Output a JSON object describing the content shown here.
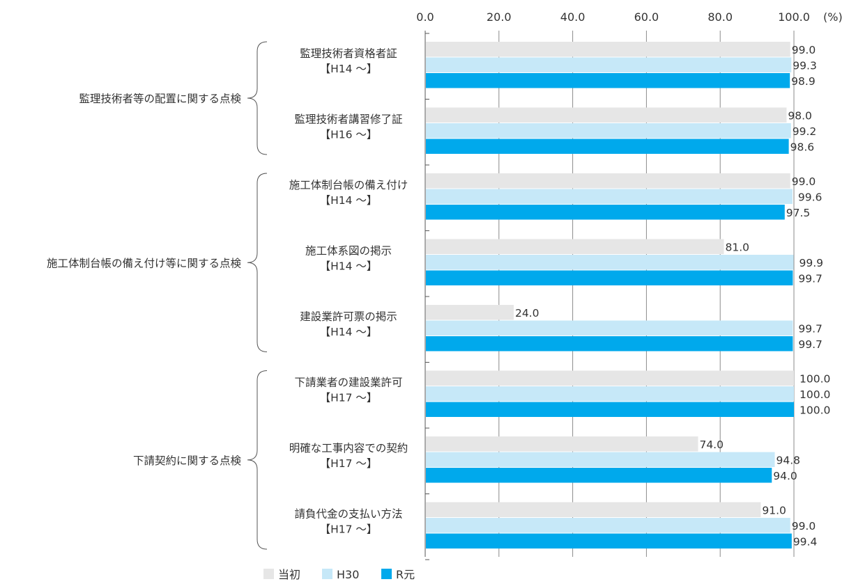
{
  "chart_data": {
    "type": "bar",
    "orientation": "horizontal",
    "unit_label": "(%)",
    "xlim": [
      0,
      100
    ],
    "x_ticks": [
      "0.0",
      "20.0",
      "40.0",
      "60.0",
      "80.0",
      "100.0"
    ],
    "groups": [
      {
        "label": "監理技術者等の配置に関する点検",
        "categories": [
          0,
          1
        ]
      },
      {
        "label": "施工体制台帳の備え付け等に関する点検",
        "categories": [
          2,
          3,
          4
        ]
      },
      {
        "label": "下請契約に関する点検",
        "categories": [
          5,
          6,
          7
        ]
      }
    ],
    "categories": [
      {
        "name": "監理技術者資格者証",
        "since": "【H14 ～】"
      },
      {
        "name": "監理技術者講習修了証",
        "since": "【H16 ～】"
      },
      {
        "name": "施工体制台帳の備え付け",
        "since": "【H14 ～】"
      },
      {
        "name": "施工体系図の掲示",
        "since": "【H14 ～】"
      },
      {
        "name": "建設業許可票の掲示",
        "since": "【H14 ～】"
      },
      {
        "name": "下請業者の建設業許可",
        "since": "【H17 ～】"
      },
      {
        "name": "明確な工事内容での契約",
        "since": "【H17 ～】"
      },
      {
        "name": "請負代金の支払い方法",
        "since": "【H17 ～】"
      }
    ],
    "series": [
      {
        "name": "当初",
        "color": "#e6e6e6",
        "values": [
          99.0,
          98.0,
          99.0,
          81.0,
          24.0,
          100.0,
          74.0,
          91.0
        ]
      },
      {
        "name": "H30",
        "color": "#c6e8f8",
        "values": [
          99.3,
          99.2,
          99.6,
          99.9,
          99.7,
          100.0,
          94.8,
          99.0
        ]
      },
      {
        "name": "R元",
        "color": "#00a9ec",
        "values": [
          98.9,
          98.6,
          97.5,
          99.7,
          99.7,
          100.0,
          94.0,
          99.4
        ]
      }
    ],
    "value_labels": [
      [
        "99.0",
        "98.0",
        "99.0",
        "81.0",
        "24.0",
        "100.0",
        "74.0",
        "91.0"
      ],
      [
        "99.3",
        "99.2",
        "99.6",
        "99.9",
        "99.7",
        "100.0",
        "94.8",
        "99.0"
      ],
      [
        "98.9",
        "98.6",
        "97.5",
        "99.7",
        "99.7",
        "100.0",
        "94.0",
        "99.4"
      ]
    ],
    "grid": "vertical",
    "legend": "bottom-left"
  }
}
